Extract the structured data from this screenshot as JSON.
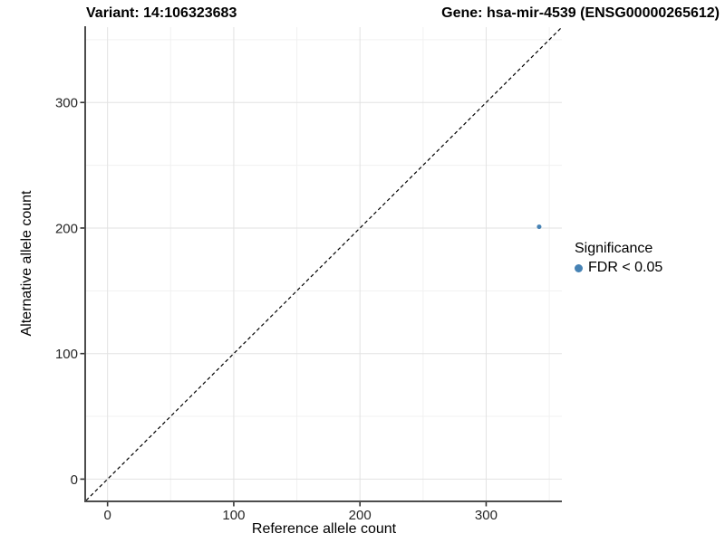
{
  "header": {
    "variant_title": "Variant: 14:106323683",
    "gene_title": "Gene: hsa-mir-4539 (ENSG00000265612)"
  },
  "chart_data": {
    "type": "scatter",
    "title": "Variant: 14:106323683    Gene: hsa-mir-4539 (ENSG00000265612)",
    "xlabel": "Reference allele count",
    "ylabel": "Alternative allele count",
    "xlim": [
      -17,
      360
    ],
    "ylim": [
      -17,
      360
    ],
    "x_major_ticks": [
      0,
      100,
      200,
      300
    ],
    "y_major_ticks": [
      0,
      100,
      200,
      300
    ],
    "x_minor_ticks": [
      50,
      150,
      250,
      350
    ],
    "y_minor_ticks": [
      50,
      150,
      250,
      350
    ],
    "grid": "major+minor",
    "reference_line": {
      "type": "identity",
      "slope": 1,
      "intercept": 0,
      "style": "dashed",
      "color": "#000000"
    },
    "series": [
      {
        "name": "FDR < 0.05",
        "color": "#4682B4",
        "points": [
          {
            "x": 342,
            "y": 201
          }
        ]
      }
    ],
    "legend": {
      "position": "right",
      "title": "Significance",
      "items": [
        {
          "label": "FDR < 0.05",
          "color": "#4682B4"
        }
      ]
    },
    "colors": {
      "grid_major": "#e2e2e2",
      "grid_minor": "#f1f1f1",
      "axis_line": "#4d4d4d",
      "tick_mark": "#333333",
      "tick_text": "#262626"
    }
  }
}
